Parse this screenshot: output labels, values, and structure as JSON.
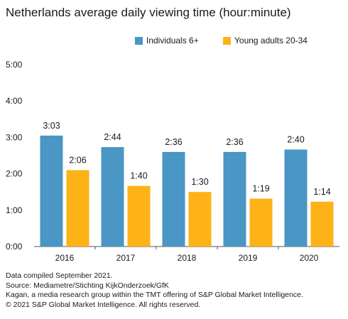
{
  "title": "Netherlands average daily viewing time (hour:minute)",
  "legend": [
    {
      "name": "Individuals 6+",
      "color": "#4a96c4"
    },
    {
      "name": "Young adults 20-34",
      "color": "#fdb217"
    }
  ],
  "chart_data": {
    "type": "bar",
    "title": "Netherlands average daily viewing time (hour:minute)",
    "categories": [
      "2016",
      "2017",
      "2018",
      "2019",
      "2020"
    ],
    "series": [
      {
        "name": "Individuals 6+",
        "color": "#4a96c4",
        "values": [
          183,
          164,
          156,
          156,
          160
        ],
        "labels": [
          "3:03",
          "2:44",
          "2:36",
          "2:36",
          "2:40"
        ]
      },
      {
        "name": "Young adults 20-34",
        "color": "#fdb217",
        "values": [
          126,
          100,
          90,
          79,
          74
        ],
        "labels": [
          "2:06",
          "1:40",
          "1:30",
          "1:19",
          "1:14"
        ]
      }
    ],
    "ylim": [
      0,
      300
    ],
    "yticks": [
      0,
      60,
      120,
      180,
      240,
      300
    ],
    "ytick_labels": [
      "0:00",
      "1:00",
      "2:00",
      "3:00",
      "4:00",
      "5:00"
    ],
    "grid": false,
    "legend_position": "top"
  },
  "footer": [
    "Data compiled September 2021.",
    "Source: Mediametre/Stichting KijkOnderzoek/GfK",
    "Kagan, a media research group within the TMT offering of S&P Global Market Intelligence.",
    "© 2021 S&P Global Market Intelligence. All rights reserved."
  ]
}
